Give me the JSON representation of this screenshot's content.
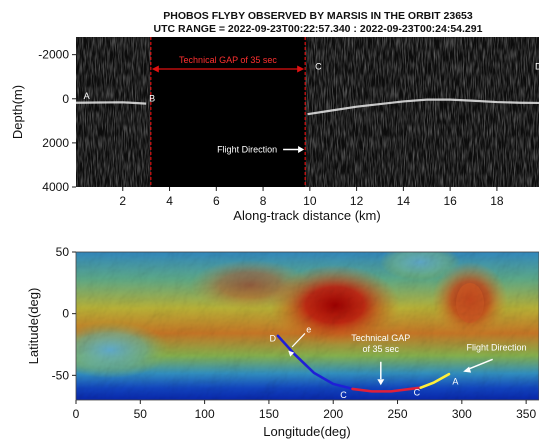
{
  "chart_data": [
    {
      "type": "radargram",
      "title": "PHOBOS FLYBY OBSERVED BY MARSIS IN THE ORBIT 23653",
      "subtitle": "UTC RANGE = 2022-09-23T00:22:57.340 : 2022-09-23T00:24:54.291",
      "xlabel": "Along-track distance (km)",
      "ylabel": "Depth(m)",
      "xlim": [
        0,
        19.8
      ],
      "ylim": [
        4000,
        -2800
      ],
      "x_ticks": [
        2,
        4,
        6,
        8,
        10,
        12,
        14,
        16,
        18
      ],
      "y_ticks": [
        -2000,
        0,
        2000,
        4000
      ],
      "gap": {
        "label": "Technical GAP of 35 sec",
        "x_start": 3.2,
        "x_end": 9.8
      },
      "direction_label": "Flight Direction",
      "surface_echo": {
        "x": [
          0.0,
          1.0,
          2.0,
          3.0,
          9.9,
          11.0,
          12.0,
          13.0,
          14.0,
          15.0,
          16.0,
          17.0,
          18.0,
          19.0,
          19.8
        ],
        "y": [
          180,
          170,
          160,
          220,
          700,
          520,
          360,
          240,
          120,
          40,
          40,
          90,
          150,
          180,
          190
        ]
      },
      "points": [
        {
          "label": "A",
          "x": 0.2,
          "y": 150
        },
        {
          "label": "B",
          "x": 3.0,
          "y": 250
        },
        {
          "label": "C",
          "x": 10.1,
          "y": -1200
        },
        {
          "label": "D",
          "x": 19.5,
          "y": -1200
        }
      ]
    },
    {
      "type": "map",
      "xlabel": "Longitude(deg)",
      "ylabel": "Latitude(deg)",
      "xlim": [
        0,
        360
      ],
      "ylim": [
        -70,
        50
      ],
      "x_ticks": [
        0,
        50,
        100,
        150,
        200,
        250,
        300,
        350
      ],
      "y_ticks": [
        -50,
        0,
        50
      ],
      "gap_label": "Technical GAP of 35 sec",
      "direction_label": "Flight Direction",
      "ground_track": [
        {
          "segment": "observed_after_gap",
          "color": "#1f1fd6",
          "lon": [
            157,
            170,
            185,
            200,
            215
          ],
          "lat": [
            -18,
            -33,
            -48,
            -57,
            -61
          ]
        },
        {
          "segment": "gap",
          "color": "#e0203a",
          "lon": [
            215,
            230,
            245,
            260,
            268
          ],
          "lat": [
            -61,
            -63,
            -63,
            -61,
            -60
          ]
        },
        {
          "segment": "observed_before_gap",
          "color": "#ffef3a",
          "lon": [
            268,
            278,
            290
          ],
          "lat": [
            -60,
            -56,
            -49
          ]
        }
      ],
      "points": [
        {
          "label": "D",
          "lon": 153,
          "lat": -20
        },
        {
          "label": "e",
          "lon": 181,
          "lat": -13
        },
        {
          "label": "C",
          "lon": 208,
          "lat": -66
        },
        {
          "label": "C",
          "lon": 265,
          "lat": -64
        },
        {
          "label": "A",
          "lon": 295,
          "lat": -55
        }
      ]
    }
  ]
}
